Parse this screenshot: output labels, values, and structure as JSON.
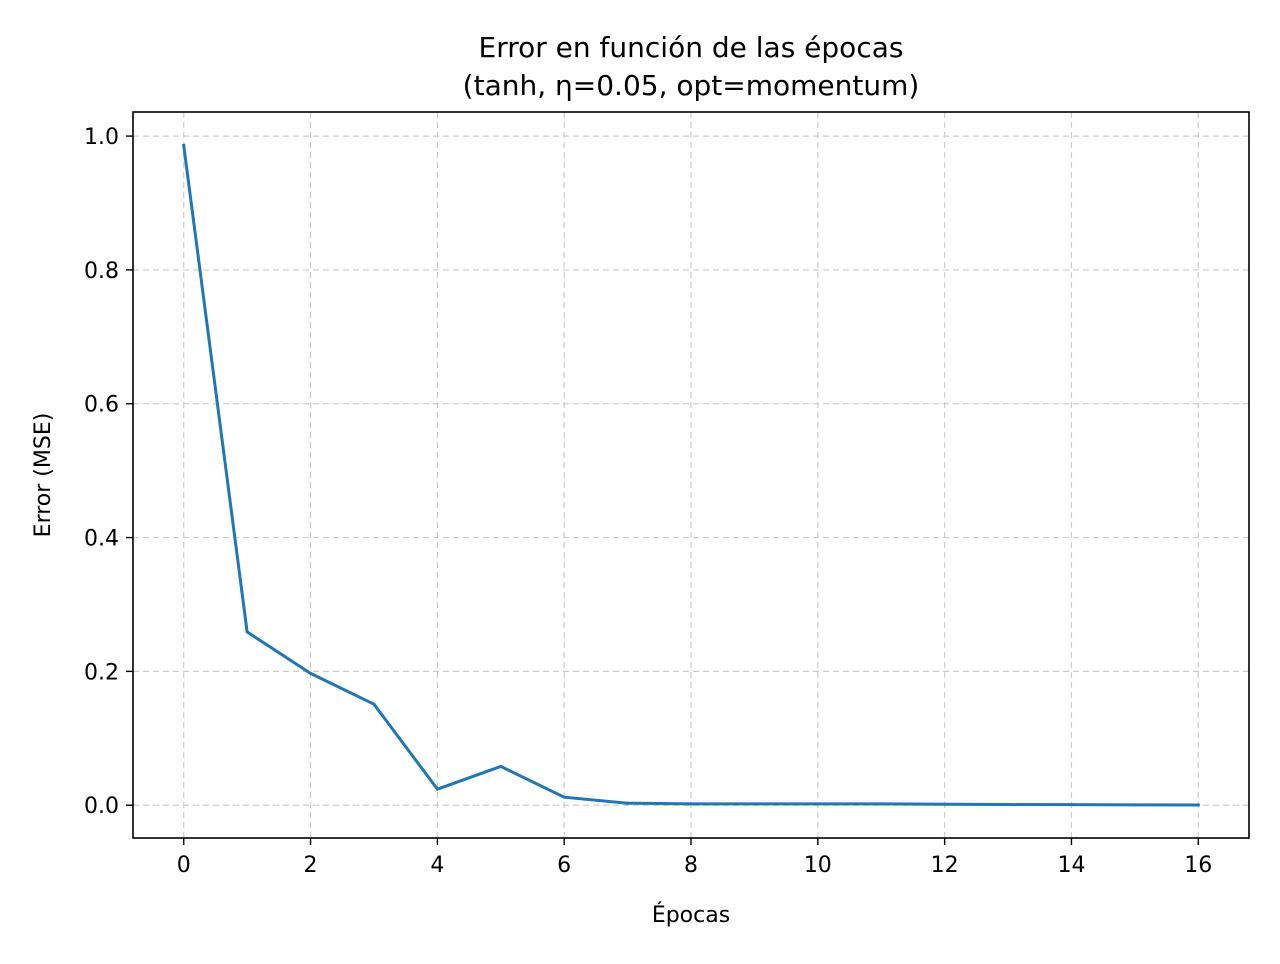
{
  "chart_data": {
    "type": "line",
    "title": "Error en función de las épocas",
    "subtitle": "(tanh, η=0.05, opt=momentum)",
    "xlabel": "Épocas",
    "ylabel": "Error (MSE)",
    "xlim": [
      -0.8,
      16.8
    ],
    "ylim": [
      -0.049,
      1.036
    ],
    "x_ticks": [
      0,
      2,
      4,
      6,
      8,
      10,
      12,
      14,
      16
    ],
    "x_tick_labels": [
      "0",
      "2",
      "4",
      "6",
      "8",
      "10",
      "12",
      "14",
      "16"
    ],
    "y_ticks": [
      0.0,
      0.2,
      0.4,
      0.6,
      0.8,
      1.0
    ],
    "y_tick_labels": [
      "0.0",
      "0.2",
      "0.4",
      "0.6",
      "0.8",
      "1.0"
    ],
    "grid": true,
    "line_color": "#1f77b4",
    "grid_color": "#cccccc",
    "series": [
      {
        "x": [
          0,
          1,
          2,
          3,
          4,
          5,
          6,
          7,
          8,
          9,
          10,
          11,
          12,
          13,
          14,
          15,
          16
        ],
        "values": [
          0.986,
          0.259,
          0.197,
          0.151,
          0.024,
          0.058,
          0.012,
          0.003,
          0.002,
          0.002,
          0.002,
          0.002,
          0.0015,
          0.001,
          0.0008,
          0.0005,
          0.0004
        ]
      }
    ]
  }
}
